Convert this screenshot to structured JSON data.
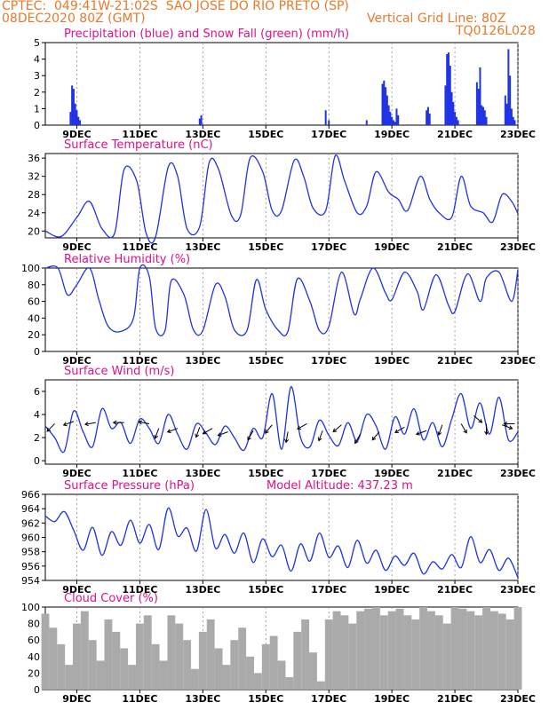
{
  "header": {
    "line1": "CPTEC:  049:41W-21:02S  SAO JOSE DO RIO PRETO (SP)",
    "line2_left": "08DEC2020 80Z (GMT)",
    "line2_right": "Vertical Grid Line: 80Z",
    "model_code": "TQ0126L028"
  },
  "colors": {
    "header": "#e8792a",
    "title": "#e0108a",
    "series": "#1f32e6",
    "snow": "#22aa22",
    "cloud": "#aaaaaa",
    "axis": "#000000",
    "grid": "#8a8a8a"
  },
  "x_ticks": [
    "9DEC",
    "11DEC",
    "13DEC",
    "15DEC",
    "17DEC",
    "19DEC",
    "21DEC",
    "23DEC"
  ],
  "chart_data": [
    {
      "type": "bar",
      "title": "Precipitation (blue) and Snow Fall (green) (mm/h)",
      "ylim": [
        0,
        5
      ],
      "yticks": [
        "0",
        "1",
        "2",
        "3",
        "4",
        "5"
      ],
      "series": [
        {
          "name": "Precipitation (blue)",
          "x": [
            8.8,
            8.85,
            8.9,
            8.95,
            9.0,
            9.05,
            9.1,
            12.9,
            12.95,
            16.9,
            17.0,
            18.2,
            18.7,
            18.75,
            18.8,
            18.85,
            18.9,
            18.95,
            19.0,
            19.05,
            19.1,
            19.15,
            19.2,
            20.1,
            20.15,
            20.2,
            20.7,
            20.75,
            20.8,
            20.85,
            20.9,
            20.95,
            21.0,
            21.05,
            21.1,
            21.7,
            21.75,
            21.8,
            21.85,
            21.9,
            21.95,
            22.0,
            22.6,
            22.65,
            22.7,
            22.75,
            22.8,
            22.85,
            22.9
          ],
          "values": [
            0.8,
            2.4,
            2.2,
            1.3,
            0.9,
            0.5,
            0.3,
            0.4,
            0.6,
            0.9,
            0.3,
            0.3,
            2.5,
            2.7,
            2.3,
            1.8,
            1.2,
            0.8,
            0.5,
            0.3,
            0.2,
            1.0,
            0.6,
            0.9,
            1.1,
            0.7,
            2.4,
            4.3,
            4.4,
            3.6,
            2.0,
            1.4,
            0.8,
            0.5,
            0.3,
            2.6,
            2.2,
            3.5,
            1.2,
            1.1,
            0.9,
            0.5,
            1.8,
            1.3,
            4.6,
            3.0,
            1.0,
            0.5,
            0.3
          ]
        },
        {
          "name": "Snow Fall (green)",
          "x": [
            9.5,
            10.5,
            11.5,
            12.5,
            13.5,
            14.5,
            15.5,
            16.5,
            17.5,
            18.5,
            19.5,
            20.5,
            21.5,
            22.5
          ],
          "values": [
            0.05,
            0.05,
            0.05,
            0.05,
            0.05,
            0.05,
            0.05,
            0.05,
            0.05,
            0.05,
            0.05,
            0.05,
            0.05,
            0.05
          ]
        }
      ]
    },
    {
      "type": "line",
      "title": "Surface Temperature (nC)",
      "ylim": [
        18.5,
        37
      ],
      "yticks": [
        "20",
        "24",
        "28",
        "32",
        "36"
      ],
      "series": [
        {
          "name": "Surface Temperature",
          "x": [
            8.0,
            8.5,
            9.0,
            9.4,
            9.8,
            10.2,
            10.5,
            10.9,
            11.2,
            11.5,
            11.9,
            12.2,
            12.5,
            12.9,
            13.2,
            13.5,
            13.9,
            14.2,
            14.5,
            14.9,
            15.2,
            15.5,
            15.9,
            16.2,
            16.5,
            16.9,
            17.2,
            17.5,
            17.9,
            18.2,
            18.5,
            18.9,
            19.2,
            19.5,
            19.9,
            20.2,
            20.5,
            20.9,
            21.2,
            21.5,
            21.9,
            22.2,
            22.5,
            22.8,
            23.0
          ],
          "values": [
            20,
            18.8,
            23,
            26.5,
            20.5,
            19.5,
            33.5,
            31,
            19.5,
            18.7,
            34,
            32,
            20.5,
            21,
            35,
            33.5,
            23.5,
            23.5,
            36,
            33,
            24.5,
            24.5,
            35.5,
            32,
            25,
            24.5,
            36.5,
            31,
            24,
            25.5,
            33,
            28.5,
            27,
            24.5,
            32,
            27,
            24,
            23,
            32,
            25.5,
            24,
            22,
            28,
            26.5,
            23.8
          ]
        }
      ]
    },
    {
      "type": "line",
      "title": "Relative Humidity (%)",
      "ylim": [
        0,
        100
      ],
      "yticks": [
        "0",
        "20",
        "40",
        "60",
        "80",
        "100"
      ],
      "series": [
        {
          "name": "Relative Humidity",
          "x": [
            8.0,
            8.4,
            8.7,
            9.0,
            9.4,
            9.7,
            10.0,
            10.4,
            10.8,
            11.0,
            11.3,
            11.5,
            11.8,
            12.0,
            12.4,
            12.7,
            13.0,
            13.4,
            13.7,
            14.0,
            14.4,
            14.7,
            15.0,
            15.4,
            15.7,
            16.0,
            16.4,
            16.7,
            17.0,
            17.4,
            17.8,
            18.0,
            18.4,
            18.8,
            19.0,
            19.4,
            19.8,
            20.0,
            20.4,
            20.8,
            21.0,
            21.4,
            21.8,
            22.0,
            22.4,
            22.8,
            23.0
          ],
          "values": [
            100,
            100,
            68,
            80,
            100,
            62,
            30,
            24,
            40,
            100,
            90,
            28,
            25,
            85,
            68,
            26,
            25,
            80,
            66,
            26,
            25,
            86,
            50,
            25,
            24,
            87,
            60,
            25,
            30,
            95,
            45,
            63,
            100,
            70,
            62,
            95,
            72,
            50,
            92,
            55,
            48,
            93,
            60,
            88,
            95,
            60,
            98
          ]
        }
      ]
    },
    {
      "type": "line",
      "title": "Surface Wind (m/s)",
      "ylim": [
        -0.3,
        7
      ],
      "yticks": [
        "0",
        "2",
        "4",
        "6"
      ],
      "series": [
        {
          "name": "Surface Wind",
          "x": [
            8.0,
            8.3,
            8.6,
            8.9,
            9.2,
            9.5,
            9.8,
            10.1,
            10.4,
            10.7,
            11.0,
            11.3,
            11.6,
            11.9,
            12.2,
            12.5,
            12.8,
            13.1,
            13.4,
            13.7,
            14.0,
            14.3,
            14.6,
            14.9,
            15.2,
            15.5,
            15.8,
            16.1,
            16.4,
            16.7,
            17.0,
            17.3,
            17.6,
            17.9,
            18.2,
            18.5,
            18.8,
            19.1,
            19.4,
            19.7,
            20.0,
            20.3,
            20.6,
            20.9,
            21.2,
            21.5,
            21.8,
            22.1,
            22.4,
            22.7,
            23.0
          ],
          "values": [
            3.0,
            2.0,
            0.8,
            4.3,
            2.5,
            1.2,
            4.5,
            2.8,
            3.3,
            1.5,
            3.6,
            2.8,
            1.5,
            4.0,
            2.3,
            1.0,
            3.2,
            2.4,
            1.4,
            3.0,
            2.0,
            0.9,
            2.8,
            2.0,
            5.8,
            1.0,
            6.4,
            2.0,
            1.2,
            3.5,
            2.2,
            1.3,
            3.3,
            1.7,
            4.0,
            3.0,
            1.0,
            3.8,
            2.3,
            4.5,
            1.8,
            3.3,
            1.2,
            3.6,
            5.8,
            2.8,
            5.0,
            2.3,
            5.5,
            1.8,
            2.5
          ]
        }
      ]
    },
    {
      "type": "line",
      "title": "Surface Pressure (hPa)",
      "annotation": "Model Altitude: 437.23 m",
      "ylim": [
        954,
        966
      ],
      "yticks": [
        "954",
        "956",
        "958",
        "960",
        "962",
        "964",
        "966"
      ],
      "series": [
        {
          "name": "Surface Pressure",
          "x": [
            8.0,
            8.3,
            8.6,
            8.9,
            9.2,
            9.5,
            9.8,
            10.1,
            10.4,
            10.7,
            11.0,
            11.3,
            11.6,
            11.9,
            12.2,
            12.5,
            12.8,
            13.1,
            13.4,
            13.7,
            14.0,
            14.3,
            14.6,
            14.9,
            15.2,
            15.5,
            15.8,
            16.1,
            16.4,
            16.7,
            17.0,
            17.3,
            17.6,
            17.9,
            18.2,
            18.5,
            18.8,
            19.1,
            19.4,
            19.7,
            20.0,
            20.3,
            20.6,
            20.9,
            21.2,
            21.5,
            21.8,
            22.1,
            22.4,
            22.7,
            23.0
          ],
          "values": [
            963.0,
            962.2,
            963.6,
            961.0,
            958.2,
            961.4,
            957.5,
            960.8,
            958.9,
            962.4,
            959.2,
            961.8,
            958.3,
            964.1,
            960.2,
            961.3,
            958.1,
            963.9,
            958.5,
            960.4,
            957.8,
            960.6,
            956.5,
            959.8,
            957.3,
            958.9,
            955.3,
            959.1,
            956.7,
            960.6,
            957.2,
            958.8,
            955.8,
            959.6,
            956.4,
            958.2,
            955.4,
            957.4,
            956.1,
            957.8,
            954.9,
            956.6,
            955.6,
            957.6,
            955.8,
            960.1,
            956.5,
            958.3,
            955.4,
            957.1,
            954.4
          ]
        }
      ]
    },
    {
      "type": "bar",
      "title": "Cloud Cover (%)",
      "ylim": [
        0,
        100
      ],
      "yticks": [
        "0",
        "20",
        "40",
        "60",
        "80",
        "100"
      ],
      "series": [
        {
          "name": "Cloud Cover",
          "x": [
            8.0,
            8.25,
            8.5,
            8.75,
            9.0,
            9.25,
            9.5,
            9.75,
            10.0,
            10.25,
            10.5,
            10.75,
            11.0,
            11.25,
            11.5,
            11.75,
            12.0,
            12.25,
            12.5,
            12.75,
            13.0,
            13.25,
            13.5,
            13.75,
            14.0,
            14.25,
            14.5,
            14.75,
            15.0,
            15.25,
            15.5,
            15.75,
            16.0,
            16.25,
            16.5,
            16.75,
            17.0,
            17.25,
            17.5,
            17.75,
            18.0,
            18.25,
            18.5,
            18.75,
            19.0,
            19.25,
            19.5,
            19.75,
            20.0,
            20.25,
            20.5,
            20.75,
            21.0,
            21.25,
            21.5,
            21.75,
            22.0,
            22.25,
            22.5,
            22.75,
            23.0
          ],
          "values": [
            92,
            75,
            55,
            30,
            80,
            95,
            60,
            35,
            85,
            70,
            50,
            30,
            80,
            90,
            55,
            35,
            90,
            80,
            60,
            25,
            70,
            85,
            50,
            30,
            60,
            75,
            40,
            20,
            55,
            65,
            35,
            15,
            70,
            85,
            45,
            10,
            85,
            95,
            90,
            80,
            95,
            98,
            100,
            90,
            95,
            98,
            90,
            85,
            100,
            95,
            90,
            80,
            100,
            98,
            95,
            90,
            100,
            95,
            92,
            85,
            100
          ]
        }
      ]
    }
  ]
}
